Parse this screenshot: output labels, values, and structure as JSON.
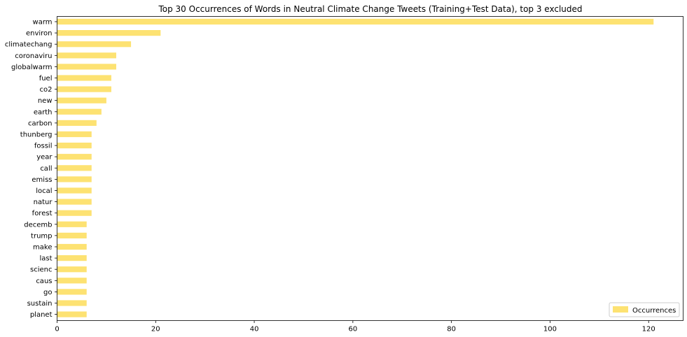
{
  "chart_data": {
    "type": "bar",
    "orientation": "horizontal",
    "title": "Top 30 Occurrences of Words in Neutral Climate Change Tweets (Training+Test Data), top 3 excluded",
    "xlabel": "",
    "ylabel": "",
    "xlim": [
      0,
      127
    ],
    "xticks": [
      0,
      20,
      40,
      60,
      80,
      100,
      120
    ],
    "grid": false,
    "legend": {
      "position": "lower-right",
      "entries": [
        "Occurrences"
      ]
    },
    "color": "#fde272",
    "categories": [
      "warm",
      "environ",
      "climatechang",
      "coronaviru",
      "globalwarm",
      "fuel",
      "co2",
      "new",
      "earth",
      "carbon",
      "thunberg",
      "fossil",
      "year",
      "call",
      "emiss",
      "local",
      "natur",
      "forest",
      "decemb",
      "trump",
      "make",
      "last",
      "scienc",
      "caus",
      "go",
      "sustain",
      "planet"
    ],
    "series": [
      {
        "name": "Occurrences",
        "values": [
          121,
          21,
          15,
          12,
          12,
          11,
          11,
          10,
          9,
          8,
          7,
          7,
          7,
          7,
          7,
          7,
          7,
          7,
          6,
          6,
          6,
          6,
          6,
          6,
          6,
          6,
          6
        ]
      }
    ]
  }
}
